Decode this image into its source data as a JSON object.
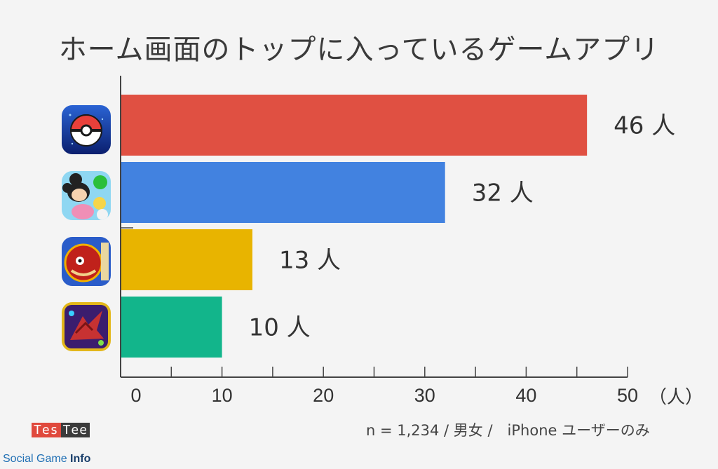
{
  "title": "ホーム画面のトップに入っているゲームアプリ",
  "footnote": "n = 1,234 / 男女 /　iPhone ユーザーのみ",
  "brand": {
    "part1": "Tes",
    "part2": "Tee"
  },
  "credit": {
    "part1": "Social Game ",
    "part2": "Info"
  },
  "icons": [
    "pokeball-icon",
    "tsum-tsum-icon",
    "monster-strike-icon",
    "puzzle-dragons-icon"
  ],
  "chart_data": {
    "type": "bar",
    "orientation": "horizontal",
    "title": "ホーム画面のトップに入っているゲームアプリ",
    "categories": [
      "",
      "",
      "",
      ""
    ],
    "values": [
      46,
      32,
      13,
      10
    ],
    "value_labels": [
      "46 人",
      "32 人",
      "13 人",
      "10 人"
    ],
    "colors": [
      "#e05042",
      "#4282e0",
      "#e8b400",
      "#12b58b"
    ],
    "xlim": [
      0,
      50
    ],
    "x_ticks": [
      0,
      10,
      20,
      30,
      40,
      50
    ],
    "xunit": "（人）",
    "grid": false
  }
}
